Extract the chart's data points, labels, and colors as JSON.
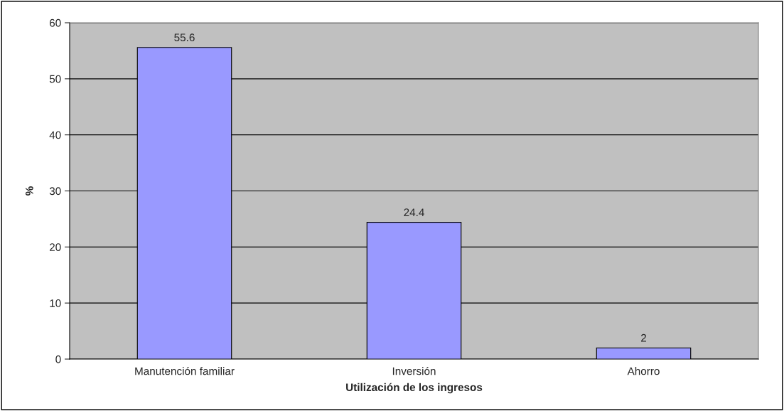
{
  "chart_data": {
    "type": "bar",
    "xlabel": "Utilización de los ingresos",
    "ylabel": "%",
    "categories": [
      "Manutención familiar",
      "Inversión",
      "Ahorro"
    ],
    "values": [
      55.6,
      24.4,
      2
    ],
    "color": "#9999ff",
    "ylim": [
      0,
      60
    ],
    "yticks": [
      0,
      10,
      20,
      30,
      40,
      50,
      60
    ],
    "grid": "y",
    "data_labels": true
  }
}
